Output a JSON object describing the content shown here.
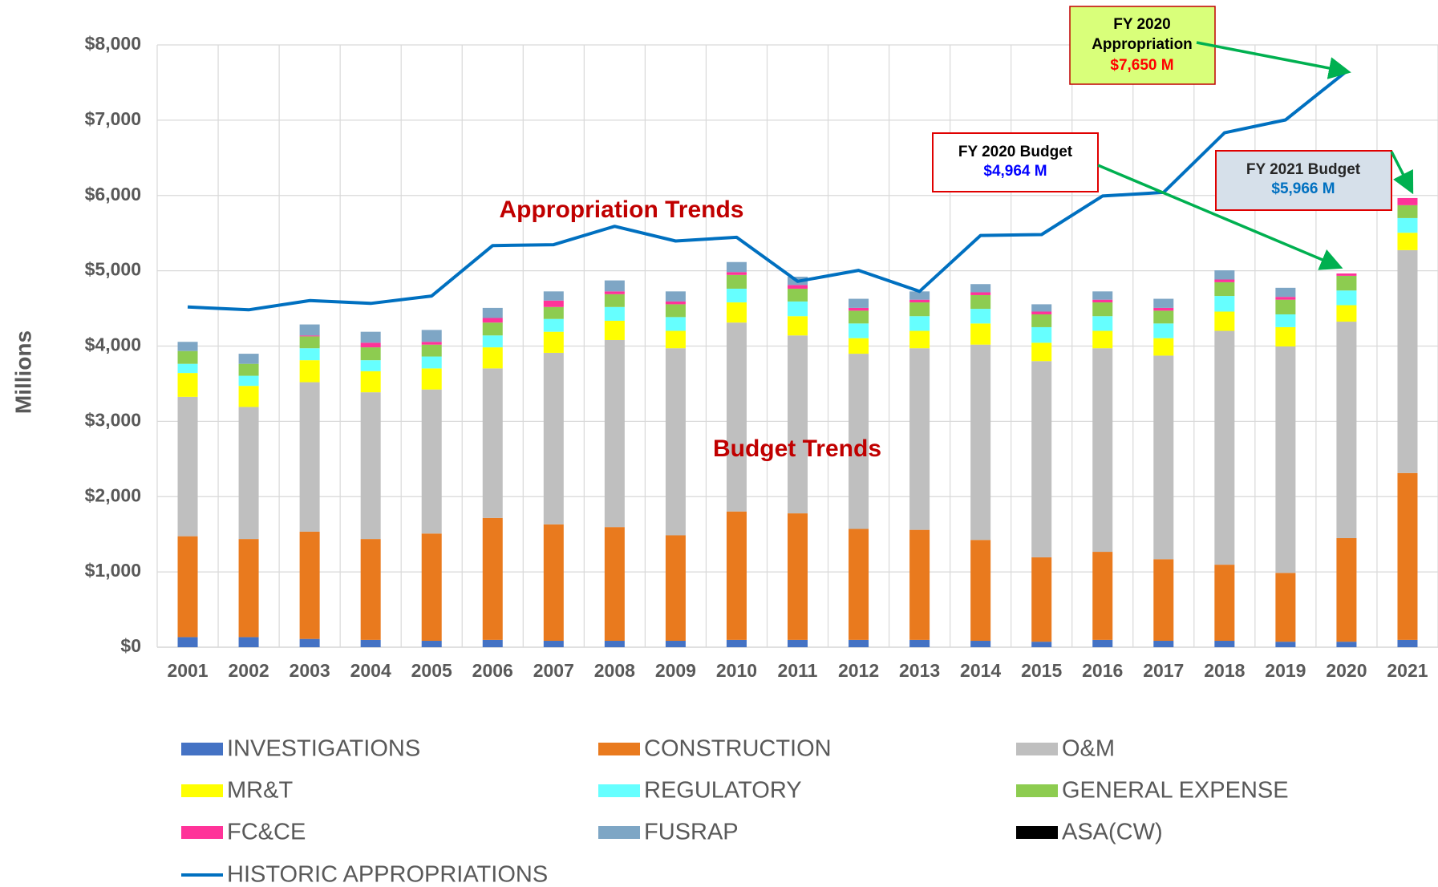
{
  "chart_data": {
    "type": "stacked_bar_line",
    "ylabel": "Millions",
    "categories": [
      "2001",
      "2002",
      "2003",
      "2004",
      "2005",
      "2006",
      "2007",
      "2008",
      "2009",
      "2010",
      "2011",
      "2012",
      "2013",
      "2014",
      "2015",
      "2016",
      "2017",
      "2018",
      "2019",
      "2020",
      "2021"
    ],
    "ylim": [
      0,
      8000
    ],
    "yticks": [
      {
        "value": 0,
        "label": "$0"
      },
      {
        "value": 1000,
        "label": "$1,000"
      },
      {
        "value": 2000,
        "label": "$2,000"
      },
      {
        "value": 3000,
        "label": "$3,000"
      },
      {
        "value": 4000,
        "label": "$4,000"
      },
      {
        "value": 5000,
        "label": "$5,000"
      },
      {
        "value": 6000,
        "label": "$6,000"
      },
      {
        "value": 7000,
        "label": "$7,000"
      },
      {
        "value": 8000,
        "label": "$8,000"
      }
    ],
    "grid": true,
    "series": [
      {
        "name": "INVESTIGATIONS",
        "color": "#4472c4",
        "values": [
          134,
          134,
          110,
          97,
          85,
          97,
          85,
          85,
          85,
          97,
          97,
          97,
          97,
          85,
          73,
          97,
          85,
          85,
          73,
          73,
          97
        ]
      },
      {
        "name": "CONSTRUCTION",
        "color": "#e97a1e",
        "values": [
          1340,
          1303,
          1425,
          1340,
          1425,
          1620,
          1547,
          1511,
          1401,
          1706,
          1681,
          1474,
          1462,
          1340,
          1121,
          1170,
          1084,
          1011,
          914,
          1376,
          2217
        ]
      },
      {
        "name": "O&M",
        "color": "#bfbfbf",
        "values": [
          1851,
          1754,
          1985,
          1949,
          1913,
          1986,
          2278,
          2484,
          2485,
          2509,
          2363,
          2327,
          2412,
          2594,
          2606,
          2704,
          2704,
          3106,
          3008,
          2875,
          2960
        ]
      },
      {
        "name": "MR&T",
        "color": "#ffff00",
        "values": [
          317,
          280,
          292,
          280,
          280,
          280,
          280,
          256,
          231,
          268,
          256,
          207,
          231,
          281,
          244,
          231,
          232,
          256,
          256,
          219,
          231
        ]
      },
      {
        "name": "REGULATORY",
        "color": "#66ffff",
        "values": [
          122,
          134,
          159,
          146,
          158,
          158,
          170,
          183,
          183,
          182,
          195,
          195,
          195,
          194,
          207,
          195,
          195,
          207,
          170,
          195,
          195
        ]
      },
      {
        "name": "GENERAL EXPENSE",
        "color": "#8dcc50",
        "values": [
          170,
          159,
          158,
          171,
          158,
          171,
          159,
          170,
          170,
          183,
          170,
          170,
          183,
          183,
          170,
          183,
          170,
          183,
          195,
          195,
          171
        ]
      },
      {
        "name": "FC&CE",
        "color": "#ff3399",
        "values": [
          0,
          0,
          12,
          61,
          37,
          61,
          85,
          37,
          37,
          37,
          49,
          37,
          36,
          37,
          37,
          36,
          37,
          36,
          37,
          31,
          95
        ]
      },
      {
        "name": "FUSRAP",
        "color": "#7ea6c5",
        "values": [
          122,
          134,
          146,
          146,
          158,
          134,
          122,
          146,
          134,
          134,
          110,
          121,
          110,
          109,
          97,
          110,
          121,
          122,
          121,
          0,
          0
        ]
      },
      {
        "name": "ASA(CW)",
        "color": "#000000",
        "values": [
          0,
          0,
          0,
          0,
          0,
          0,
          0,
          0,
          0,
          0,
          0,
          0,
          0,
          0,
          0,
          0,
          0,
          0,
          0,
          0,
          0
        ]
      },
      {
        "name": "HISTORIC APPROPRIATIONS",
        "type": "line",
        "color": "#0070c0",
        "values": [
          4519,
          4482,
          4604,
          4567,
          4665,
          5335,
          5347,
          5590,
          5396,
          5444,
          4860,
          5006,
          4726,
          5469,
          5481,
          5993,
          6041,
          6833,
          7004,
          7650,
          null
        ]
      }
    ],
    "annotations": [
      "Appropriation Trends",
      "Budget Trends"
    ],
    "callouts": [
      {
        "lines": [
          "FY 2020",
          "Appropriation"
        ],
        "value_text": "$7,650 M"
      },
      {
        "lines": [
          "FY 2020 Budget"
        ],
        "value_text": "$4,964 M"
      },
      {
        "lines": [
          "FY 2021 Budget"
        ],
        "value_text": "$5,966 M"
      }
    ]
  }
}
